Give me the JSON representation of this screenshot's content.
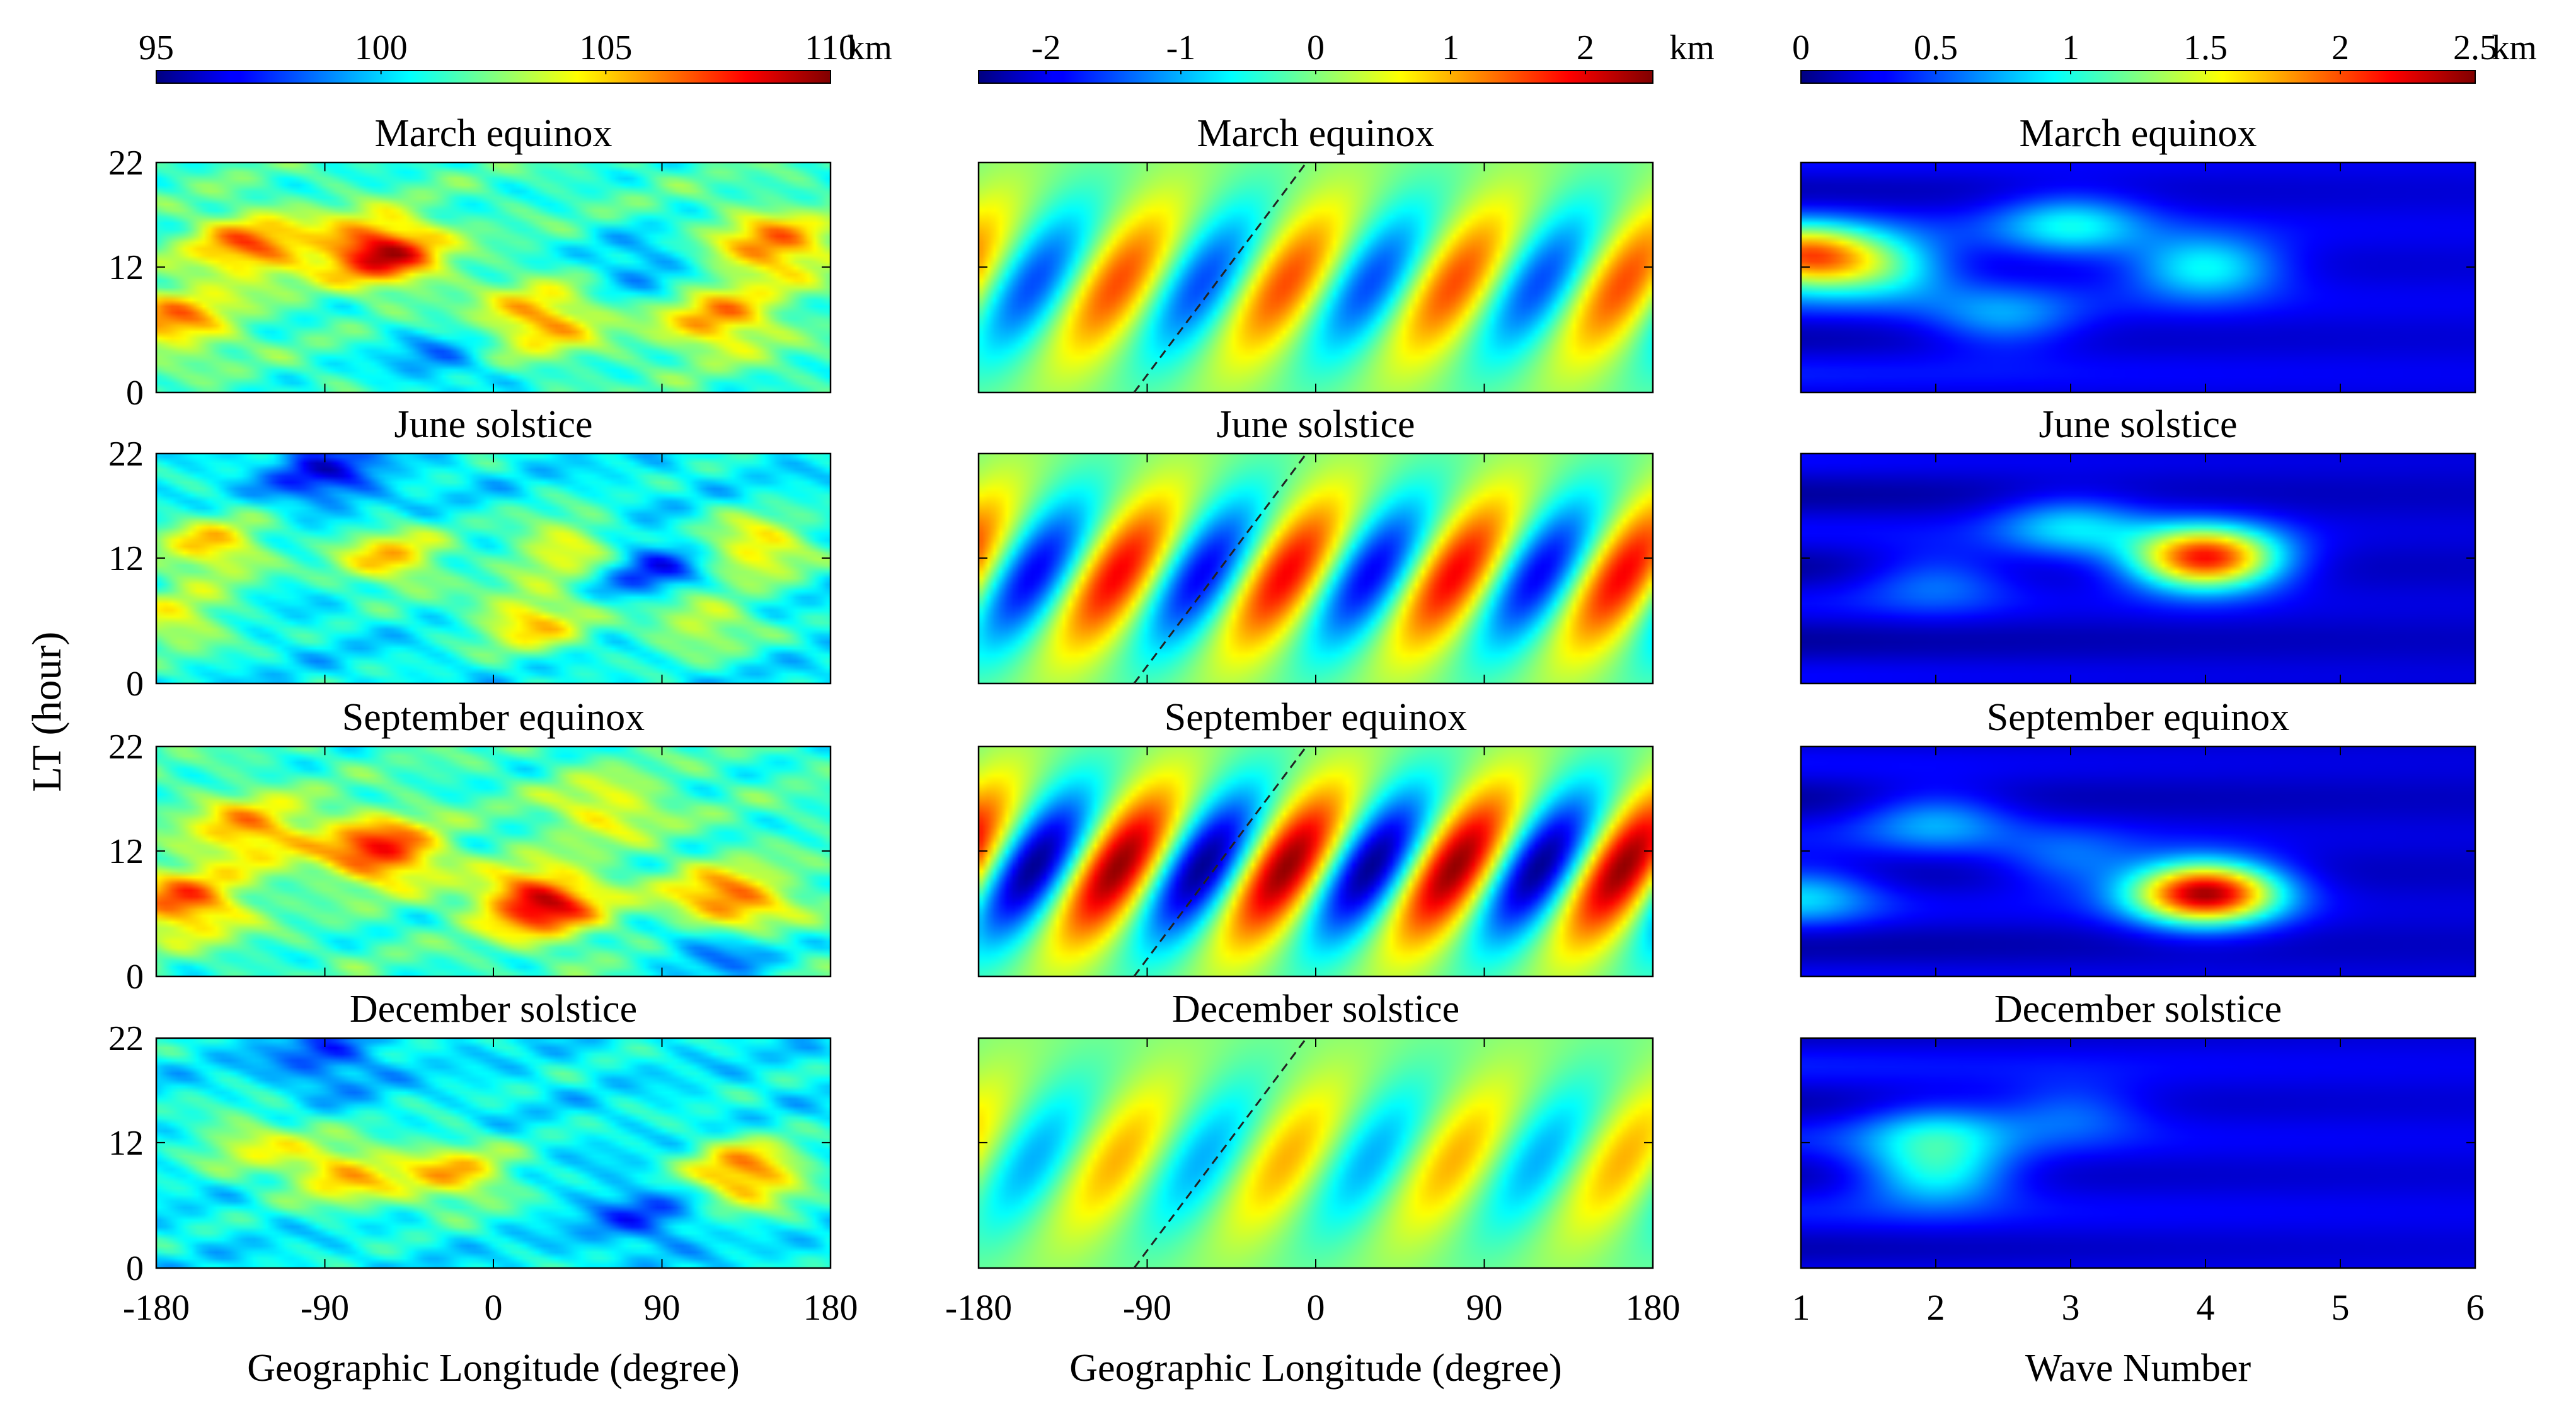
{
  "figure": {
    "ylabel": "LT (hour)"
  },
  "chart_data": [
    {
      "type": "heatmap",
      "column": "left",
      "colorbar": {
        "ticks": [
          "95",
          "100",
          "105",
          "110"
        ],
        "range": [
          95,
          110
        ],
        "unit": "km"
      },
      "xlabel": "Geographic Longitude (degree)",
      "xticks": [
        "-180",
        "-90",
        "0",
        "90",
        "180"
      ],
      "xlim": [
        -180,
        180
      ],
      "yticks": [
        "0",
        "12",
        "22"
      ],
      "ylim": [
        0,
        22
      ],
      "panels": [
        {
          "title": "March equinox",
          "background": 101.5,
          "blobs": [
            {
              "lon": -130,
              "lt": 14,
              "value": 106.5
            },
            {
              "lon": -60,
              "lt": 13.5,
              "value": 109
            },
            {
              "lon": -170,
              "lt": 7,
              "value": 106
            },
            {
              "lon": 25,
              "lt": 7,
              "value": 106
            },
            {
              "lon": 120,
              "lt": 7,
              "value": 106
            },
            {
              "lon": 150,
              "lt": 14,
              "value": 106.5
            },
            {
              "lon": -30,
              "lt": 3,
              "value": 99
            },
            {
              "lon": 80,
              "lt": 12,
              "value": 99
            }
          ]
        },
        {
          "title": "June solstice",
          "background": 100.5,
          "blobs": [
            {
              "lon": -150,
              "lt": 13,
              "value": 105
            },
            {
              "lon": -55,
              "lt": 12,
              "value": 105
            },
            {
              "lon": 40,
              "lt": 13,
              "value": 104.5
            },
            {
              "lon": 140,
              "lt": 13,
              "value": 105
            },
            {
              "lon": 20,
              "lt": 6,
              "value": 105
            },
            {
              "lon": -170,
              "lt": 6,
              "value": 104
            },
            {
              "lon": 110,
              "lt": 6,
              "value": 104
            },
            {
              "lon": -90,
              "lt": 20,
              "value": 97
            },
            {
              "lon": 85,
              "lt": 11,
              "value": 97
            }
          ]
        },
        {
          "title": "September equinox",
          "background": 101.5,
          "blobs": [
            {
              "lon": -60,
              "lt": 12,
              "value": 108
            },
            {
              "lon": -130,
              "lt": 14,
              "value": 106
            },
            {
              "lon": 25,
              "lt": 7,
              "value": 109
            },
            {
              "lon": 125,
              "lt": 7,
              "value": 107.5
            },
            {
              "lon": -165,
              "lt": 7,
              "value": 107
            },
            {
              "lon": 60,
              "lt": 16,
              "value": 104.5
            },
            {
              "lon": 120,
              "lt": 3,
              "value": 98
            }
          ]
        },
        {
          "title": "December solstice",
          "background": 100.5,
          "blobs": [
            {
              "lon": -80,
              "lt": 9,
              "value": 105
            },
            {
              "lon": -20,
              "lt": 9,
              "value": 105
            },
            {
              "lon": 135,
              "lt": 9,
              "value": 106.5
            },
            {
              "lon": -130,
              "lt": 12,
              "value": 103.5
            },
            {
              "lon": 80,
              "lt": 5,
              "value": 98
            },
            {
              "lon": -90,
              "lt": 20,
              "value": 98
            }
          ]
        }
      ]
    },
    {
      "type": "heatmap",
      "column": "middle",
      "colorbar": {
        "ticks": [
          "-2",
          "-1",
          "0",
          "1",
          "2"
        ],
        "range": [
          -2.5,
          2.5
        ],
        "unit": "km"
      },
      "xlabel": "Geographic Longitude (degree)",
      "xticks": [
        "-180",
        "-90",
        "0",
        "90",
        "180"
      ],
      "xlim": [
        -180,
        180
      ],
      "yticks": [
        "0",
        "12",
        "22"
      ],
      "ylim": [
        0,
        22
      ],
      "wave_number": 4,
      "reference_line": {
        "style": "dashed",
        "from": [
          -97,
          0
        ],
        "to": [
          -5,
          22
        ]
      },
      "panels": [
        {
          "title": "March equinox",
          "amplitude": 1.5
        },
        {
          "title": "June solstice",
          "amplitude": 1.9
        },
        {
          "title": "September equinox",
          "amplitude": 2.4
        },
        {
          "title": "December solstice",
          "amplitude": 1.0
        }
      ]
    },
    {
      "type": "heatmap",
      "column": "right",
      "colorbar": {
        "ticks": [
          "0",
          "0.5",
          "1",
          "1.5",
          "2",
          "2.5"
        ],
        "range": [
          0,
          2.5
        ],
        "unit": "km"
      },
      "xlabel": "Wave Number",
      "xticks": [
        "1",
        "2",
        "3",
        "4",
        "5",
        "6"
      ],
      "xlim": [
        1,
        6
      ],
      "yticks": [
        "0",
        "12",
        "22"
      ],
      "ylim": [
        0,
        22
      ],
      "panels": [
        {
          "title": "March equinox",
          "background": 0.25,
          "blobs": [
            {
              "wn": 1,
              "lt": 13,
              "value": 1.9
            },
            {
              "wn": 1.6,
              "lt": 12,
              "value": 1.0
            },
            {
              "wn": 4,
              "lt": 12,
              "value": 1.0
            },
            {
              "wn": 3,
              "lt": 16,
              "value": 0.9
            },
            {
              "wn": 2.5,
              "lt": 7,
              "value": 0.7
            }
          ]
        },
        {
          "title": "June solstice",
          "background": 0.2,
          "blobs": [
            {
              "wn": 4,
              "lt": 12,
              "value": 2.2
            },
            {
              "wn": 3,
              "lt": 15,
              "value": 0.8
            },
            {
              "wn": 2,
              "lt": 10,
              "value": 0.6
            }
          ]
        },
        {
          "title": "September equinox",
          "background": 0.2,
          "blobs": [
            {
              "wn": 4,
              "lt": 8,
              "value": 2.4
            },
            {
              "wn": 1,
              "lt": 8,
              "value": 0.8
            },
            {
              "wn": 2,
              "lt": 15,
              "value": 0.7
            },
            {
              "wn": 3,
              "lt": 11,
              "value": 0.6
            }
          ]
        },
        {
          "title": "December solstice",
          "background": 0.25,
          "blobs": [
            {
              "wn": 2,
              "lt": 9,
              "value": 1.0
            },
            {
              "wn": 2,
              "lt": 13,
              "value": 0.8
            },
            {
              "wn": 3,
              "lt": 15,
              "value": 0.6
            }
          ]
        }
      ]
    }
  ]
}
